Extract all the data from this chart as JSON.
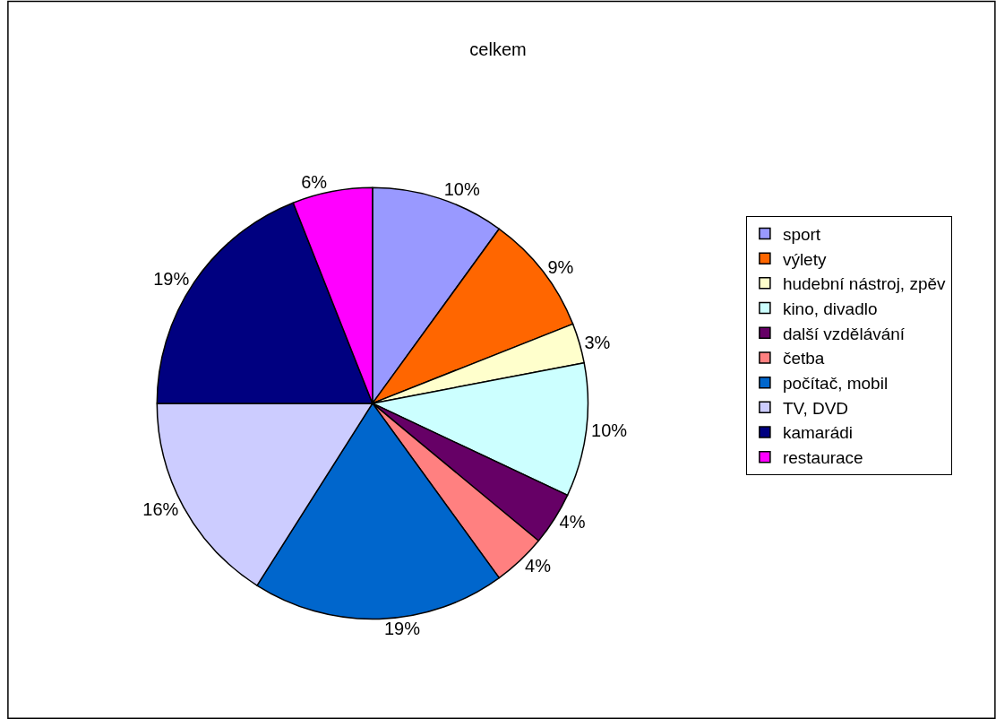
{
  "chart_data": {
    "type": "pie",
    "title": "celkem",
    "categories": [
      "sport",
      "výlety",
      "hudební nástroj, zpěv",
      "kino, divadlo",
      "další vzdělávání",
      "četba",
      "počítač, mobil",
      "TV, DVD",
      "kamarádi",
      "restaurace"
    ],
    "values": [
      10,
      9,
      3,
      10,
      4,
      4,
      19,
      16,
      19,
      6
    ],
    "colors": [
      "#9999ff",
      "#ff6600",
      "#ffffcc",
      "#ccffff",
      "#660066",
      "#ff8080",
      "#0066cc",
      "#ccccff",
      "#000080",
      "#ff00ff"
    ],
    "value_labels": [
      "10%",
      "9%",
      "3%",
      "10%",
      "4%",
      "4%",
      "19%",
      "16%",
      "19%",
      "6%"
    ],
    "legend": "right"
  }
}
